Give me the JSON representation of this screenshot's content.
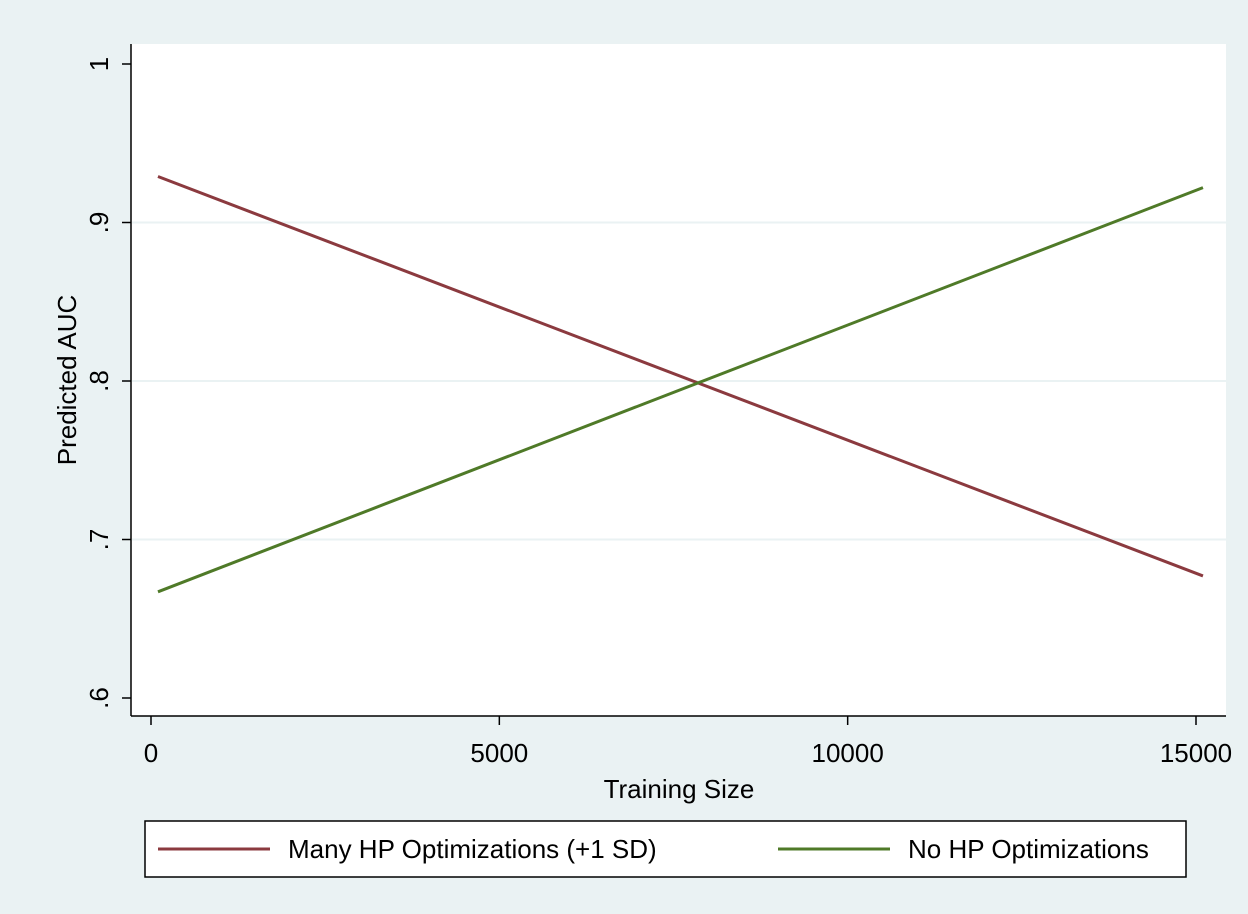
{
  "chart_data": {
    "type": "line",
    "title": "",
    "xlabel": "Training Size",
    "ylabel": "Predicted AUC",
    "xlim": [
      0,
      15000
    ],
    "ylim": [
      0.6,
      1.0
    ],
    "x_ticks": [
      0,
      5000,
      10000,
      15000
    ],
    "x_tick_labels": [
      "0",
      "5000",
      "10000",
      "15000"
    ],
    "y_ticks": [
      0.6,
      0.7,
      0.8,
      0.9,
      1.0
    ],
    "y_tick_labels": [
      ".6",
      ".7",
      ".8",
      ".9",
      "1"
    ],
    "grid": "horizontal",
    "legend_position": "bottom",
    "series": [
      {
        "name": "Many HP Optimizations (+1 SD)",
        "color": "#8b3a3f",
        "x": [
          100,
          15100
        ],
        "y": [
          0.929,
          0.677
        ]
      },
      {
        "name": "No HP Optimizations",
        "color": "#4f7a28",
        "x": [
          100,
          15100
        ],
        "y": [
          0.667,
          0.922
        ]
      }
    ]
  },
  "colors": {
    "outer_background": "#eaf2f3",
    "plot_background": "#ffffff",
    "grid": "#eaf2f3"
  }
}
